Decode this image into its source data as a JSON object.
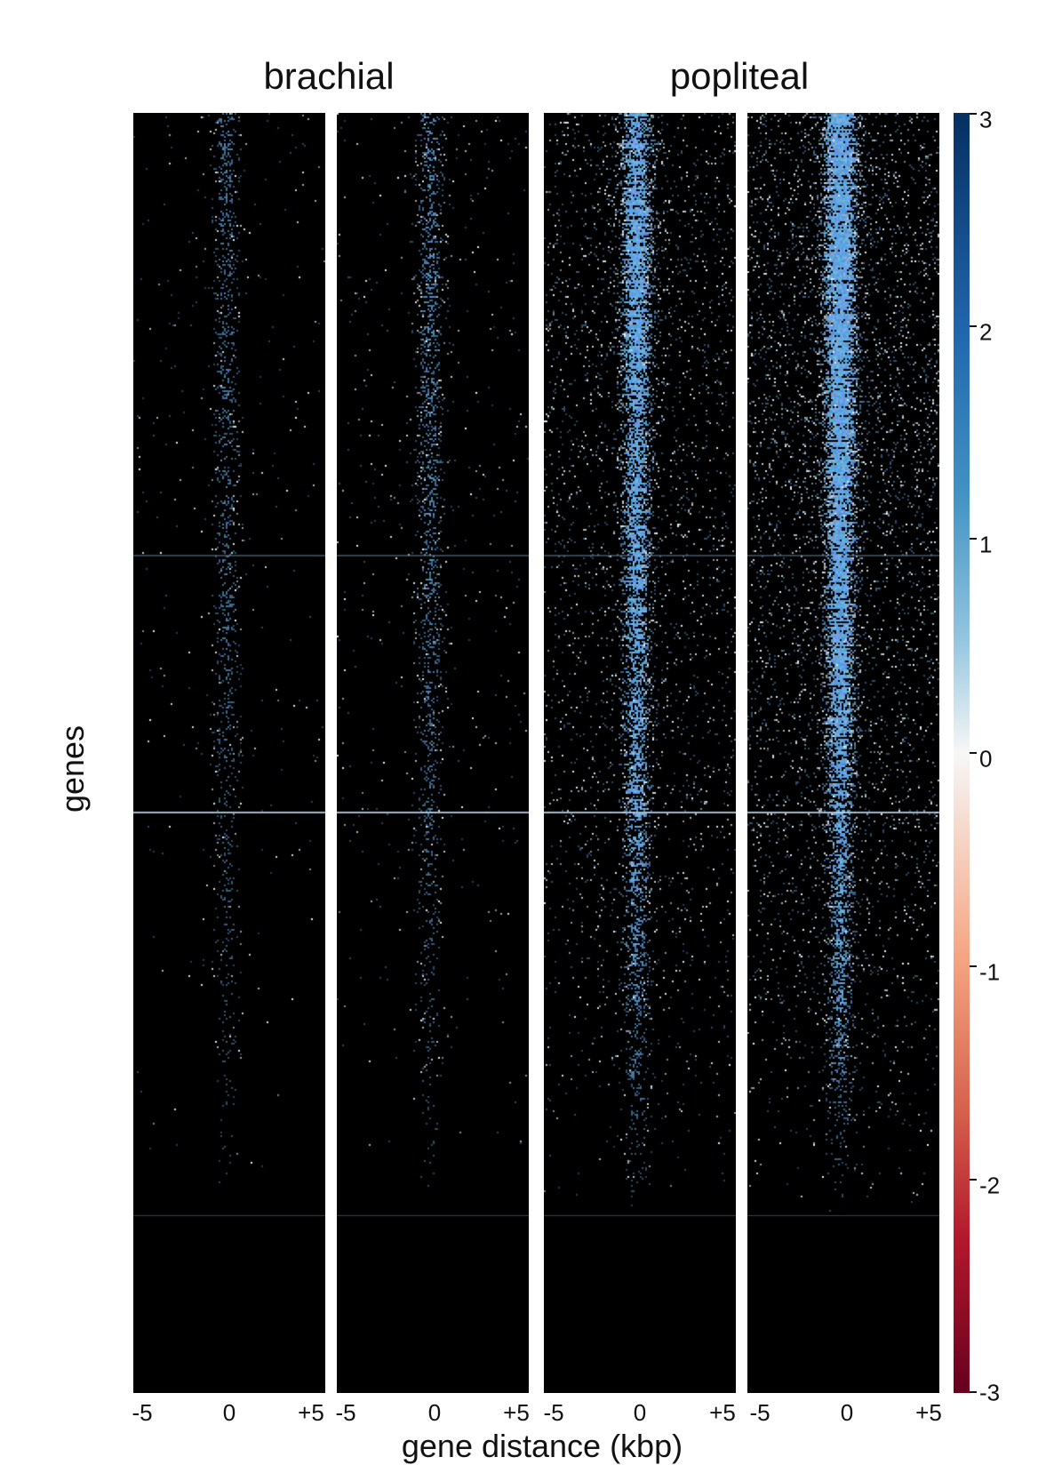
{
  "chart_data": {
    "type": "heatmap",
    "titles": [
      "brachial",
      "popliteal"
    ],
    "panels": [
      {
        "group": "brachial",
        "replicate": 1,
        "signal_level": 0.25
      },
      {
        "group": "brachial",
        "replicate": 2,
        "signal_level": 0.32
      },
      {
        "group": "popliteal",
        "replicate": 1,
        "signal_level": 0.8
      },
      {
        "group": "popliteal",
        "replicate": 2,
        "signal_level": 1.0
      }
    ],
    "xlabel": "gene distance (kbp)",
    "ylabel": "genes",
    "x_range": [
      -5,
      5
    ],
    "x_ticks": [
      "-5",
      "0",
      "+5"
    ],
    "colorbar": {
      "range": [
        -3,
        3
      ],
      "ticks": [
        "3",
        "2",
        "1",
        "0",
        "-1",
        "-2",
        "-3"
      ],
      "colormap": "RdBu diverging",
      "low_color": "#67001f",
      "mid_color": "#f7f7f7",
      "high_color": "#053061"
    },
    "background_color": "#000000"
  }
}
